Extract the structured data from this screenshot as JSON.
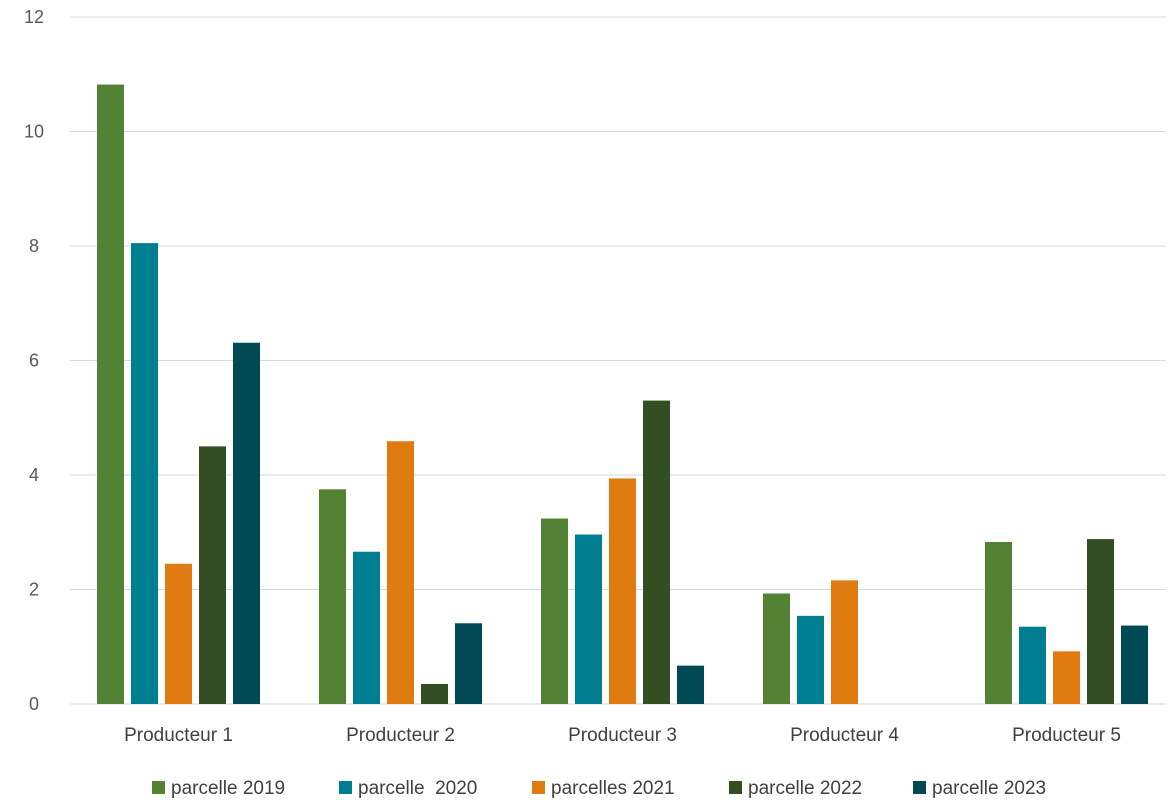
{
  "chart_data": {
    "type": "bar",
    "categories": [
      "Producteur 1",
      "Producteur 2",
      "Producteur 3",
      "Producteur 4",
      "Producteur 5"
    ],
    "series": [
      {
        "name": "parcelle 2019",
        "color": "#548235",
        "values": [
          10.82,
          3.75,
          3.24,
          1.93,
          2.83
        ]
      },
      {
        "name": "parcelle  2020",
        "color": "#007e91",
        "values": [
          8.05,
          2.66,
          2.96,
          1.54,
          1.35
        ]
      },
      {
        "name": "parcelles 2021",
        "color": "#e07b12",
        "values": [
          2.45,
          4.59,
          3.94,
          2.16,
          0.92
        ]
      },
      {
        "name": "parcelle 2022",
        "color": "#334e22",
        "values": [
          4.5,
          0.35,
          5.3,
          0,
          2.88
        ]
      },
      {
        "name": "parcelle 2023",
        "color": "#004a56",
        "values": [
          6.31,
          1.41,
          0.67,
          0,
          1.37
        ]
      }
    ],
    "title": "",
    "xlabel": "",
    "ylabel": "",
    "ylim": [
      0,
      12
    ],
    "yticks": [
      "0",
      "2",
      "4",
      "6",
      "8",
      "10",
      "12"
    ],
    "grid": true,
    "legend": "bottom"
  }
}
